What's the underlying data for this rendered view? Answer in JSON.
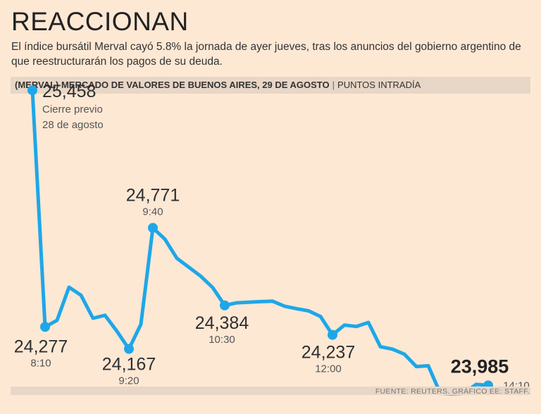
{
  "header": {
    "title": "REACCIONAN",
    "subtitle": "El índice bursátil Merval cayó 5.8% la jornada de ayer jueves, tras los anuncios del gobierno argentino de que reestructurarán los pagos de su deuda."
  },
  "chart_bar": {
    "strong": "(MERVAL) MERCADO DE VALORES DE BUENOS AIRES, 29 DE AGOSTO",
    "separator": "|",
    "unit": "PUNTOS INTRADÍA"
  },
  "source": "FUENTE: REUTERS. GRÁFICO EE: STAFF.",
  "colors": {
    "line": "#1ea7e8",
    "background": "#fde8d4",
    "band": "#e8d6c6"
  },
  "chart_data": {
    "type": "line",
    "title": "(MERVAL) MERCADO DE VALORES DE BUENOS AIRES, 29 DE AGOSTO",
    "ylabel": "PUNTOS INTRADÍA",
    "ylim": [
      23800,
      25550
    ],
    "series": [
      {
        "name": "Merval",
        "values": [
          25458,
          24277,
          24310,
          24475,
          24435,
          24320,
          24335,
          24255,
          24167,
          24290,
          24771,
          24715,
          24620,
          24575,
          24530,
          24473,
          24384,
          24397,
          24400,
          24403,
          24405,
          24380,
          24368,
          24357,
          24329,
          24237,
          24286,
          24279,
          24299,
          24178,
          24166,
          24141,
          24079,
          24083,
          23946,
          23943,
          23946,
          23990,
          23985
        ]
      }
    ],
    "annotations": [
      {
        "index": 0,
        "value": "25,458",
        "line1": "Cierre previo",
        "line2": "28 de agosto"
      },
      {
        "index": 1,
        "value": "24,277",
        "line1": "8:10"
      },
      {
        "index": 8,
        "value": "24,167",
        "line1": "9:20"
      },
      {
        "index": 10,
        "value": "24,771",
        "line1": "9:40"
      },
      {
        "index": 16,
        "value": "24,384",
        "line1": "10:30"
      },
      {
        "index": 25,
        "value": "24,237",
        "line1": "12:00"
      },
      {
        "index": 38,
        "value": "23,985",
        "line1": "14:10"
      }
    ]
  }
}
